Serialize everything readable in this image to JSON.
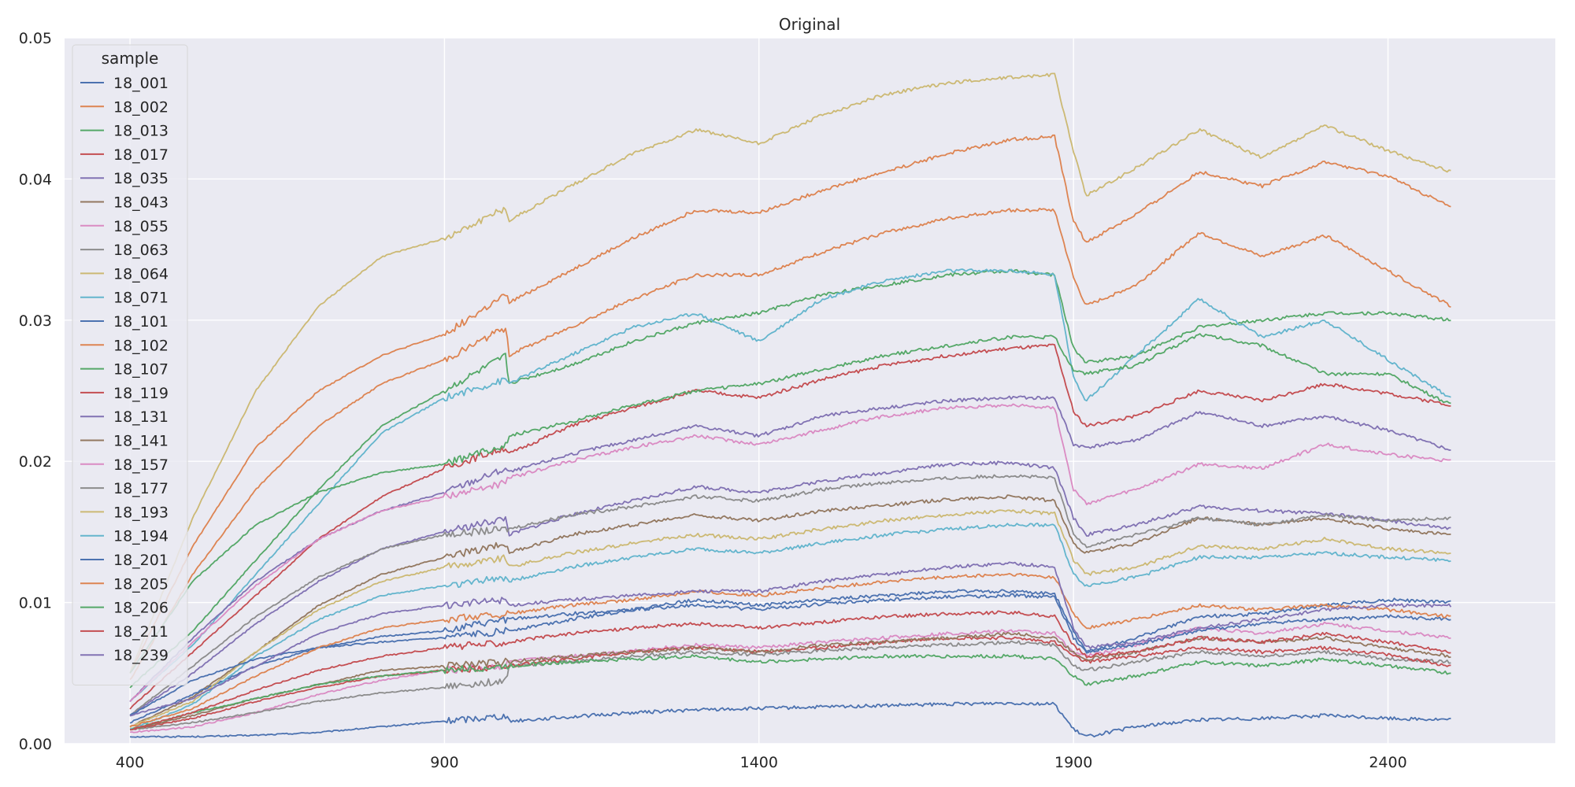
{
  "chart_data": {
    "type": "line",
    "title": "Original",
    "xlabel": "",
    "ylabel": "",
    "xlim": [
      296,
      2666
    ],
    "ylim": [
      0,
      0.05
    ],
    "x_ticks": [
      "400",
      "900",
      "1400",
      "1900",
      "2400"
    ],
    "x_tick_values": [
      400,
      900,
      1400,
      1900,
      2400
    ],
    "y_ticks": [
      "0.00",
      "0.01",
      "0.02",
      "0.03",
      "0.04",
      "0.05"
    ],
    "y_tick_values": [
      0,
      0.01,
      0.02,
      0.03,
      0.04,
      0.05
    ],
    "grid": true,
    "legend": {
      "title": "sample",
      "position": "top-left"
    },
    "x_anchors": [
      400,
      500,
      600,
      700,
      800,
      900,
      999,
      1001,
      1100,
      1200,
      1300,
      1400,
      1500,
      1600,
      1700,
      1800,
      1870,
      1900,
      1920,
      2000,
      2100,
      2200,
      2300,
      2400,
      2500
    ],
    "series": [
      {
        "name": "18_001",
        "color": "#4c72b0",
        "values": [
          0.0005,
          0.0005,
          0.0006,
          0.0008,
          0.0012,
          0.0016,
          0.002,
          0.0016,
          0.0019,
          0.0022,
          0.0024,
          0.0025,
          0.0026,
          0.0027,
          0.0028,
          0.0029,
          0.0028,
          0.001,
          0.0005,
          0.0012,
          0.0017,
          0.0018,
          0.002,
          0.0018,
          0.0017
        ]
      },
      {
        "name": "18_002",
        "color": "#dd8452",
        "values": [
          0.005,
          0.014,
          0.021,
          0.025,
          0.0275,
          0.029,
          0.0318,
          0.0312,
          0.0335,
          0.0358,
          0.0378,
          0.0376,
          0.0392,
          0.0405,
          0.0418,
          0.0428,
          0.043,
          0.037,
          0.0355,
          0.0375,
          0.0405,
          0.0395,
          0.0412,
          0.0402,
          0.038
        ]
      },
      {
        "name": "18_013",
        "color": "#55a868",
        "values": [
          0.004,
          0.008,
          0.013,
          0.018,
          0.0225,
          0.025,
          0.0275,
          0.0255,
          0.0268,
          0.0285,
          0.0298,
          0.0305,
          0.0318,
          0.0325,
          0.0332,
          0.0335,
          0.0332,
          0.028,
          0.027,
          0.0275,
          0.0295,
          0.03,
          0.0305,
          0.0305,
          0.03
        ]
      },
      {
        "name": "18_017",
        "color": "#c44e52",
        "values": [
          0.0025,
          0.0065,
          0.0105,
          0.0145,
          0.0175,
          0.0195,
          0.021,
          0.0205,
          0.0225,
          0.0238,
          0.025,
          0.0245,
          0.0258,
          0.0268,
          0.0275,
          0.028,
          0.0282,
          0.0235,
          0.0225,
          0.0232,
          0.025,
          0.0243,
          0.0255,
          0.0248,
          0.024
        ]
      },
      {
        "name": "18_035",
        "color": "#8172b3",
        "values": [
          0.002,
          0.005,
          0.0085,
          0.0115,
          0.0138,
          0.015,
          0.016,
          0.0148,
          0.0162,
          0.0172,
          0.0182,
          0.0178,
          0.0186,
          0.0192,
          0.0198,
          0.0199,
          0.0195,
          0.016,
          0.0148,
          0.0155,
          0.0168,
          0.0165,
          0.0163,
          0.0158,
          0.0152
        ]
      },
      {
        "name": "18_043",
        "color": "#937860",
        "values": [
          0.0012,
          0.0033,
          0.0065,
          0.0098,
          0.012,
          0.0132,
          0.0142,
          0.0135,
          0.0148,
          0.0155,
          0.0162,
          0.0158,
          0.0165,
          0.0169,
          0.0173,
          0.0175,
          0.0172,
          0.0142,
          0.0135,
          0.0142,
          0.016,
          0.0155,
          0.016,
          0.0152,
          0.0148
        ]
      },
      {
        "name": "18_055",
        "color": "#da8bc3",
        "values": [
          0.0008,
          0.0012,
          0.0022,
          0.0035,
          0.0045,
          0.0052,
          0.0055,
          0.0058,
          0.0062,
          0.0066,
          0.007,
          0.0068,
          0.0072,
          0.0075,
          0.0078,
          0.008,
          0.0078,
          0.0065,
          0.0062,
          0.007,
          0.0082,
          0.0078,
          0.0085,
          0.008,
          0.0075
        ]
      },
      {
        "name": "18_063",
        "color": "#8c8c8c",
        "values": [
          0.001,
          0.0015,
          0.0022,
          0.003,
          0.0036,
          0.004,
          0.0045,
          0.0055,
          0.0058,
          0.0062,
          0.0065,
          0.0063,
          0.0066,
          0.0068,
          0.007,
          0.0072,
          0.007,
          0.0055,
          0.0052,
          0.0058,
          0.0065,
          0.0062,
          0.0065,
          0.006,
          0.0058
        ]
      },
      {
        "name": "18_064",
        "color": "#ccb974",
        "values": [
          0.005,
          0.016,
          0.025,
          0.031,
          0.0345,
          0.0358,
          0.038,
          0.037,
          0.0395,
          0.0418,
          0.0435,
          0.0425,
          0.0445,
          0.046,
          0.0468,
          0.0472,
          0.0474,
          0.042,
          0.0388,
          0.0408,
          0.0435,
          0.0415,
          0.0438,
          0.042,
          0.0405
        ]
      },
      {
        "name": "18_071",
        "color": "#64b5cd",
        "values": [
          0.003,
          0.007,
          0.012,
          0.017,
          0.022,
          0.0245,
          0.0258,
          0.0255,
          0.0275,
          0.0295,
          0.0305,
          0.0285,
          0.0315,
          0.0328,
          0.0335,
          0.0335,
          0.0332,
          0.026,
          0.0243,
          0.0275,
          0.0315,
          0.0288,
          0.03,
          0.0272,
          0.0245
        ]
      },
      {
        "name": "18_101",
        "color": "#4c72b0",
        "values": [
          0.0015,
          0.0035,
          0.0055,
          0.0068,
          0.0076,
          0.008,
          0.0088,
          0.0088,
          0.0092,
          0.0095,
          0.0098,
          0.0095,
          0.0099,
          0.0102,
          0.0104,
          0.0105,
          0.0104,
          0.0075,
          0.0065,
          0.007,
          0.008,
          0.0085,
          0.0088,
          0.009,
          0.0088
        ]
      },
      {
        "name": "18_102",
        "color": "#dd8452",
        "values": [
          0.0045,
          0.012,
          0.018,
          0.0225,
          0.0255,
          0.0272,
          0.0295,
          0.0275,
          0.0295,
          0.0315,
          0.0332,
          0.0332,
          0.0348,
          0.0362,
          0.0372,
          0.0378,
          0.0378,
          0.033,
          0.031,
          0.0325,
          0.0362,
          0.0345,
          0.036,
          0.0335,
          0.031
        ]
      },
      {
        "name": "18_107",
        "color": "#55a868",
        "values": [
          0.005,
          0.0115,
          0.0155,
          0.0178,
          0.0192,
          0.0198,
          0.0212,
          0.0218,
          0.0228,
          0.024,
          0.025,
          0.0255,
          0.0265,
          0.0275,
          0.0282,
          0.0288,
          0.0288,
          0.0265,
          0.0262,
          0.0268,
          0.029,
          0.0282,
          0.0262,
          0.0262,
          0.024
        ]
      },
      {
        "name": "18_119",
        "color": "#c44e52",
        "values": [
          0.001,
          0.0018,
          0.003,
          0.004,
          0.0048,
          0.0052,
          0.0055,
          0.0055,
          0.006,
          0.0065,
          0.0068,
          0.0065,
          0.0068,
          0.0072,
          0.0075,
          0.0075,
          0.0072,
          0.0062,
          0.0058,
          0.0062,
          0.0068,
          0.0065,
          0.0068,
          0.0063,
          0.0055
        ]
      },
      {
        "name": "18_131",
        "color": "#8172b3",
        "values": [
          0.003,
          0.0075,
          0.0115,
          0.0145,
          0.0165,
          0.0178,
          0.0195,
          0.0192,
          0.0205,
          0.0215,
          0.0225,
          0.0218,
          0.0232,
          0.0238,
          0.0243,
          0.0245,
          0.0245,
          0.0212,
          0.021,
          0.0215,
          0.0235,
          0.0225,
          0.0232,
          0.0222,
          0.0208
        ]
      },
      {
        "name": "18_141",
        "color": "#937860",
        "values": [
          0.001,
          0.002,
          0.0032,
          0.0042,
          0.0052,
          0.0055,
          0.0058,
          0.0058,
          0.0062,
          0.0065,
          0.0068,
          0.0065,
          0.007,
          0.0072,
          0.0075,
          0.0078,
          0.0075,
          0.0065,
          0.006,
          0.0065,
          0.0075,
          0.0072,
          0.0075,
          0.0068,
          0.0062
        ]
      },
      {
        "name": "18_157",
        "color": "#da8bc3",
        "values": [
          0.003,
          0.0072,
          0.0112,
          0.0145,
          0.0165,
          0.0175,
          0.0185,
          0.0188,
          0.02,
          0.021,
          0.0218,
          0.0212,
          0.0222,
          0.0232,
          0.0238,
          0.024,
          0.0238,
          0.018,
          0.017,
          0.018,
          0.0198,
          0.0195,
          0.0212,
          0.0205,
          0.02
        ]
      },
      {
        "name": "18_177",
        "color": "#8c8c8c",
        "values": [
          0.002,
          0.0055,
          0.009,
          0.0118,
          0.0138,
          0.0148,
          0.0152,
          0.0152,
          0.0162,
          0.0168,
          0.0175,
          0.0172,
          0.018,
          0.0185,
          0.0188,
          0.019,
          0.0188,
          0.0148,
          0.014,
          0.0148,
          0.016,
          0.0155,
          0.0162,
          0.0158,
          0.016
        ]
      },
      {
        "name": "18_193",
        "color": "#ccb974",
        "values": [
          0.0012,
          0.003,
          0.0065,
          0.0095,
          0.0115,
          0.0125,
          0.0132,
          0.0125,
          0.0135,
          0.0142,
          0.0148,
          0.0145,
          0.0152,
          0.0158,
          0.0162,
          0.0165,
          0.0163,
          0.013,
          0.012,
          0.0125,
          0.014,
          0.0138,
          0.0145,
          0.0138,
          0.0135
        ]
      },
      {
        "name": "18_194",
        "color": "#64b5cd",
        "values": [
          0.001,
          0.0028,
          0.0062,
          0.0088,
          0.0105,
          0.0112,
          0.0118,
          0.0115,
          0.0125,
          0.0132,
          0.0138,
          0.0135,
          0.0142,
          0.0148,
          0.0152,
          0.0155,
          0.0155,
          0.012,
          0.0112,
          0.0118,
          0.0132,
          0.0132,
          0.0135,
          0.0132,
          0.013
        ]
      },
      {
        "name": "18_201",
        "color": "#4c72b0",
        "values": [
          0.002,
          0.0045,
          0.006,
          0.0068,
          0.0072,
          0.0075,
          0.008,
          0.008,
          0.0088,
          0.0095,
          0.0102,
          0.0098,
          0.0102,
          0.0105,
          0.0108,
          0.0108,
          0.0106,
          0.008,
          0.0065,
          0.0075,
          0.009,
          0.0092,
          0.0098,
          0.0102,
          0.01
        ]
      },
      {
        "name": "18_205",
        "color": "#dd8452",
        "values": [
          0.0012,
          0.0025,
          0.0048,
          0.0068,
          0.0082,
          0.0088,
          0.0092,
          0.0092,
          0.0098,
          0.0102,
          0.0108,
          0.0105,
          0.011,
          0.0115,
          0.0118,
          0.012,
          0.0118,
          0.0092,
          0.0082,
          0.0088,
          0.0098,
          0.0095,
          0.0098,
          0.0095,
          0.009
        ]
      },
      {
        "name": "18_206",
        "color": "#55a868",
        "values": [
          0.001,
          0.0022,
          0.0032,
          0.0042,
          0.0048,
          0.0052,
          0.0055,
          0.0055,
          0.0058,
          0.006,
          0.0062,
          0.0058,
          0.006,
          0.0062,
          0.0062,
          0.0062,
          0.006,
          0.0048,
          0.0042,
          0.0048,
          0.0058,
          0.0055,
          0.006,
          0.0055,
          0.005
        ]
      },
      {
        "name": "18_211",
        "color": "#c44e52",
        "values": [
          0.001,
          0.0022,
          0.0038,
          0.0052,
          0.0062,
          0.0068,
          0.0072,
          0.0072,
          0.0078,
          0.0082,
          0.0085,
          0.0082,
          0.0086,
          0.009,
          0.0092,
          0.0093,
          0.009,
          0.007,
          0.0062,
          0.0065,
          0.0075,
          0.0072,
          0.0078,
          0.0072,
          0.0065
        ]
      },
      {
        "name": "18_239",
        "color": "#8172b3",
        "values": [
          0.002,
          0.0032,
          0.0055,
          0.0078,
          0.0092,
          0.0098,
          0.0102,
          0.0098,
          0.0102,
          0.0105,
          0.0108,
          0.0108,
          0.0115,
          0.012,
          0.0125,
          0.0128,
          0.0125,
          0.0082,
          0.0068,
          0.0072,
          0.0082,
          0.0088,
          0.0095,
          0.0098,
          0.0098
        ]
      }
    ]
  }
}
